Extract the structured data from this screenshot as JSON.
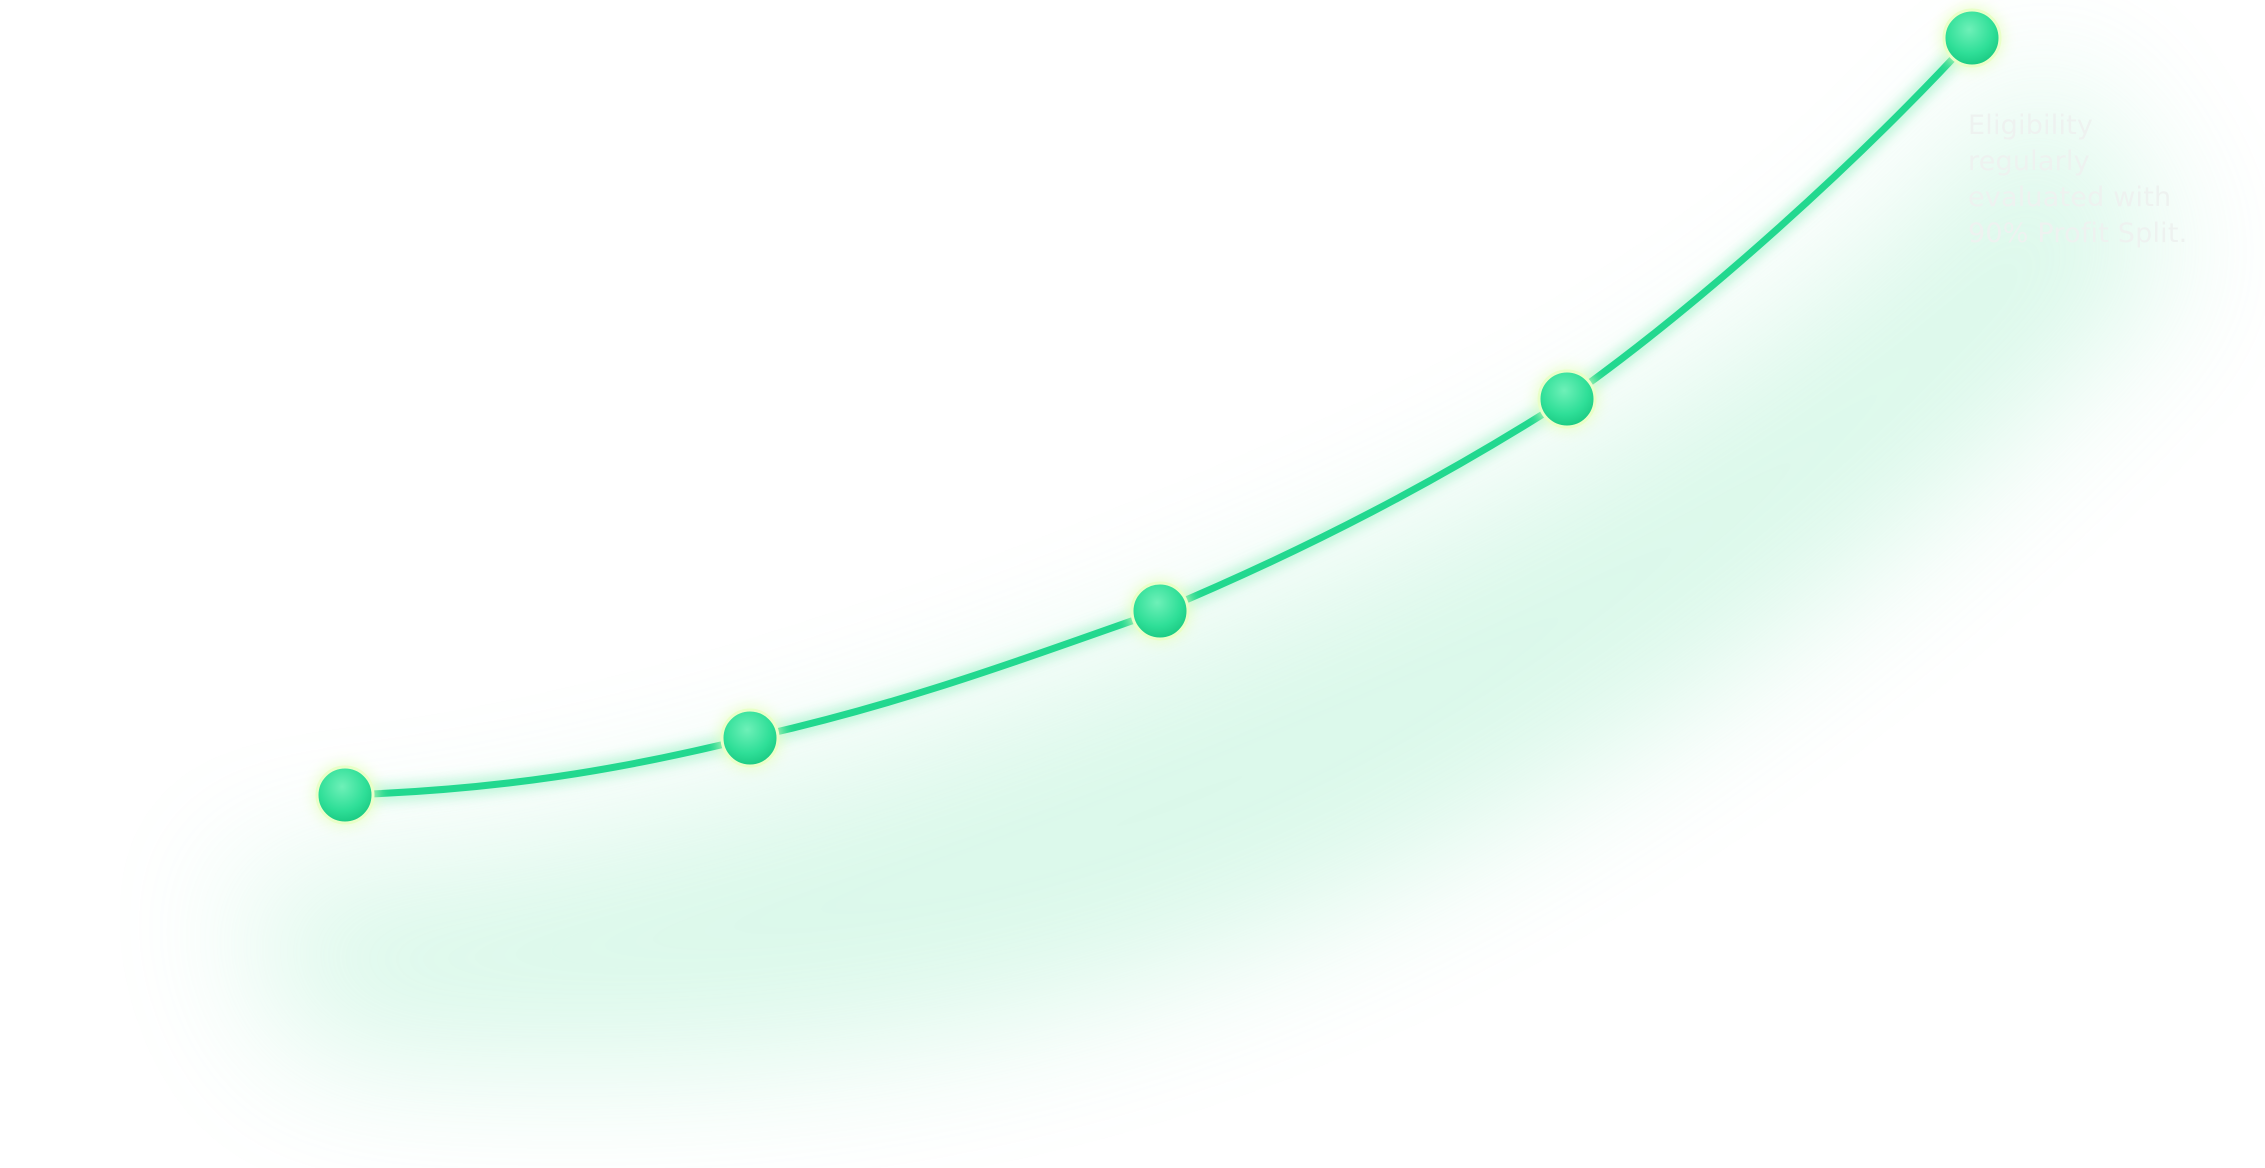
{
  "diagram": {
    "accent_color": "#22d88f",
    "glow_color": "#b8f5d6",
    "node_highlight_color": "#e9ffc8",
    "text_color": "#eef2f0",
    "step_count": 5,
    "final_step_text": "Eligibility\nregularly\nevaluated with\n90% Profit Split."
  }
}
